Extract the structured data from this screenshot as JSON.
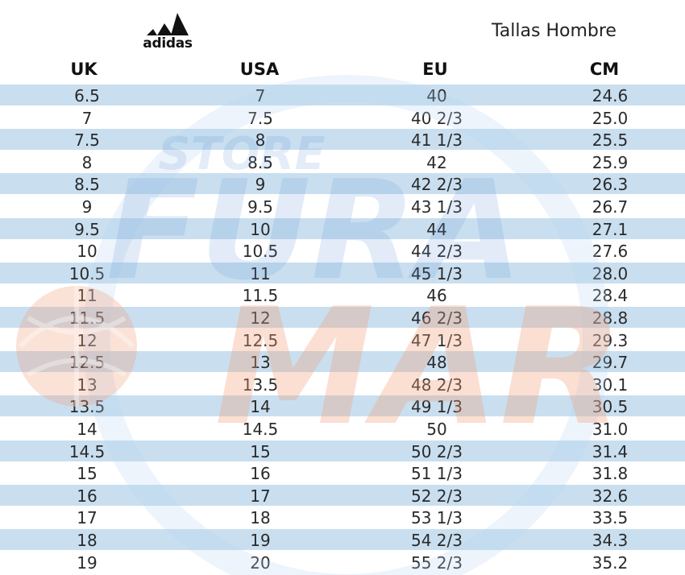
{
  "brand": {
    "name": "adidas"
  },
  "title": "Tallas Hombre",
  "watermark": {
    "top_text": "STORE",
    "text": "FURA",
    "text2": "MAR",
    "colors": {
      "blue": "#5b8fd1",
      "orange": "#f2a07a"
    }
  },
  "columns": [
    "UK",
    "USA",
    "EU",
    "CM"
  ],
  "rows": [
    [
      "6.5",
      "7",
      "40",
      "24.6"
    ],
    [
      "7",
      "7.5",
      "40 2/3",
      "25.0"
    ],
    [
      "7.5",
      "8",
      "41 1/3",
      "25.5"
    ],
    [
      "8",
      "8.5",
      "42",
      "25.9"
    ],
    [
      "8.5",
      "9",
      "42 2/3",
      "26.3"
    ],
    [
      "9",
      "9.5",
      "43 1/3",
      "26.7"
    ],
    [
      "9.5",
      "10",
      "44",
      "27.1"
    ],
    [
      "10",
      "10.5",
      "44 2/3",
      "27.6"
    ],
    [
      "10.5",
      "11",
      "45 1/3",
      "28.0"
    ],
    [
      "11",
      "11.5",
      "46",
      "28.4"
    ],
    [
      "11.5",
      "12",
      "46 2/3",
      "28.8"
    ],
    [
      "12",
      "12.5",
      "47 1/3",
      "29.3"
    ],
    [
      "12.5",
      "13",
      "48",
      "29.7"
    ],
    [
      "13",
      "13.5",
      "48 2/3",
      "30.1"
    ],
    [
      "13.5",
      "14",
      "49 1/3",
      "30.5"
    ],
    [
      "14",
      "14.5",
      "50",
      "31.0"
    ],
    [
      "14.5",
      "15",
      "50 2/3",
      "31.4"
    ],
    [
      "15",
      "16",
      "51 1/3",
      "31.8"
    ],
    [
      "16",
      "17",
      "52 2/3",
      "32.6"
    ],
    [
      "17",
      "18",
      "53 1/3",
      "33.5"
    ],
    [
      "18",
      "19",
      "54 2/3",
      "34.3"
    ],
    [
      "19",
      "20",
      "55 2/3",
      "35.2"
    ]
  ],
  "colors": {
    "stripe": "#c9dff0",
    "text": "#2a2a2a",
    "header": "#111111"
  }
}
